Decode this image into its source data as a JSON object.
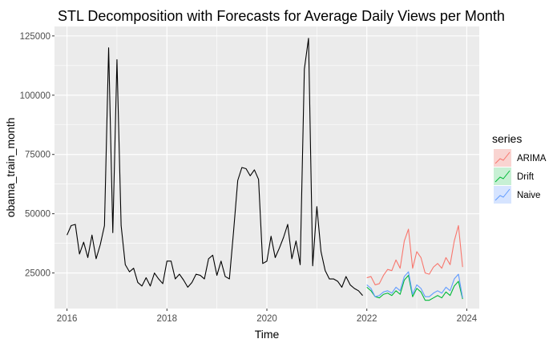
{
  "chart_data": {
    "type": "line",
    "title": "STL Decomposition with Forecasts for Average Daily Views per Month",
    "xlabel": "Time",
    "ylabel": "obama_train_month",
    "xlim": [
      2015.75,
      2024.25
    ],
    "ylim": [
      10000,
      129000
    ],
    "x_ticks": [
      2016,
      2018,
      2020,
      2022,
      2024
    ],
    "y_ticks": [
      25000,
      50000,
      75000,
      100000,
      125000
    ],
    "y_tick_labels": [
      "25000",
      "50000",
      "75000",
      "100000",
      "125000"
    ],
    "grid": true,
    "legend": {
      "title": "series",
      "position": "right",
      "entries": [
        "ARIMA",
        "Drift",
        "Naive"
      ]
    },
    "series": [
      {
        "name": "obama_train_month",
        "color": "#000000",
        "x_start": 2016.0,
        "step": 0.08333333,
        "values": [
          41000,
          45000,
          45500,
          33000,
          38000,
          31500,
          41000,
          31000,
          37000,
          45000,
          120000,
          42000,
          115000,
          45000,
          28500,
          25500,
          27000,
          21000,
          19500,
          23000,
          19500,
          25000,
          22500,
          20500,
          30000,
          30000,
          22500,
          24500,
          22000,
          19000,
          21000,
          24500,
          24000,
          22500,
          31000,
          32500,
          24000,
          30000,
          23500,
          22500,
          42500,
          64000,
          69500,
          69000,
          66000,
          68500,
          64500,
          29000,
          30000,
          40500,
          31500,
          35500,
          40000,
          45500,
          31000,
          38500,
          28500,
          111000,
          124000,
          28000,
          53000,
          34000,
          26000,
          22500,
          22500,
          21500,
          19000,
          23500,
          20000,
          18500,
          17500,
          15500
        ]
      },
      {
        "name": "ARIMA",
        "color": "#F8766D",
        "x_start": 2022.0,
        "step": 0.08333333,
        "values": [
          23000,
          23500,
          20000,
          20500,
          24000,
          26500,
          26000,
          30500,
          27000,
          38500,
          43500,
          27000,
          34000,
          31500,
          25000,
          24500,
          27500,
          29000,
          27000,
          31500,
          28500,
          38500,
          45000,
          27500
        ]
      },
      {
        "name": "Drift",
        "color": "#00BA38",
        "x_start": 2022.0,
        "step": 0.08333333,
        "values": [
          19000,
          17500,
          15000,
          14500,
          16000,
          16500,
          15500,
          17500,
          16000,
          22000,
          24000,
          15000,
          18500,
          17000,
          13500,
          13500,
          14500,
          15500,
          14500,
          17000,
          15500,
          19500,
          21500,
          14000
        ]
      },
      {
        "name": "Naive",
        "color": "#619CFF",
        "x_start": 2022.0,
        "step": 0.08333333,
        "values": [
          20000,
          18500,
          15000,
          15500,
          17000,
          17500,
          16500,
          19000,
          17500,
          23500,
          25500,
          16000,
          20000,
          18500,
          15000,
          15000,
          16500,
          17500,
          16500,
          19000,
          17500,
          22500,
          24500,
          14500
        ]
      }
    ]
  }
}
